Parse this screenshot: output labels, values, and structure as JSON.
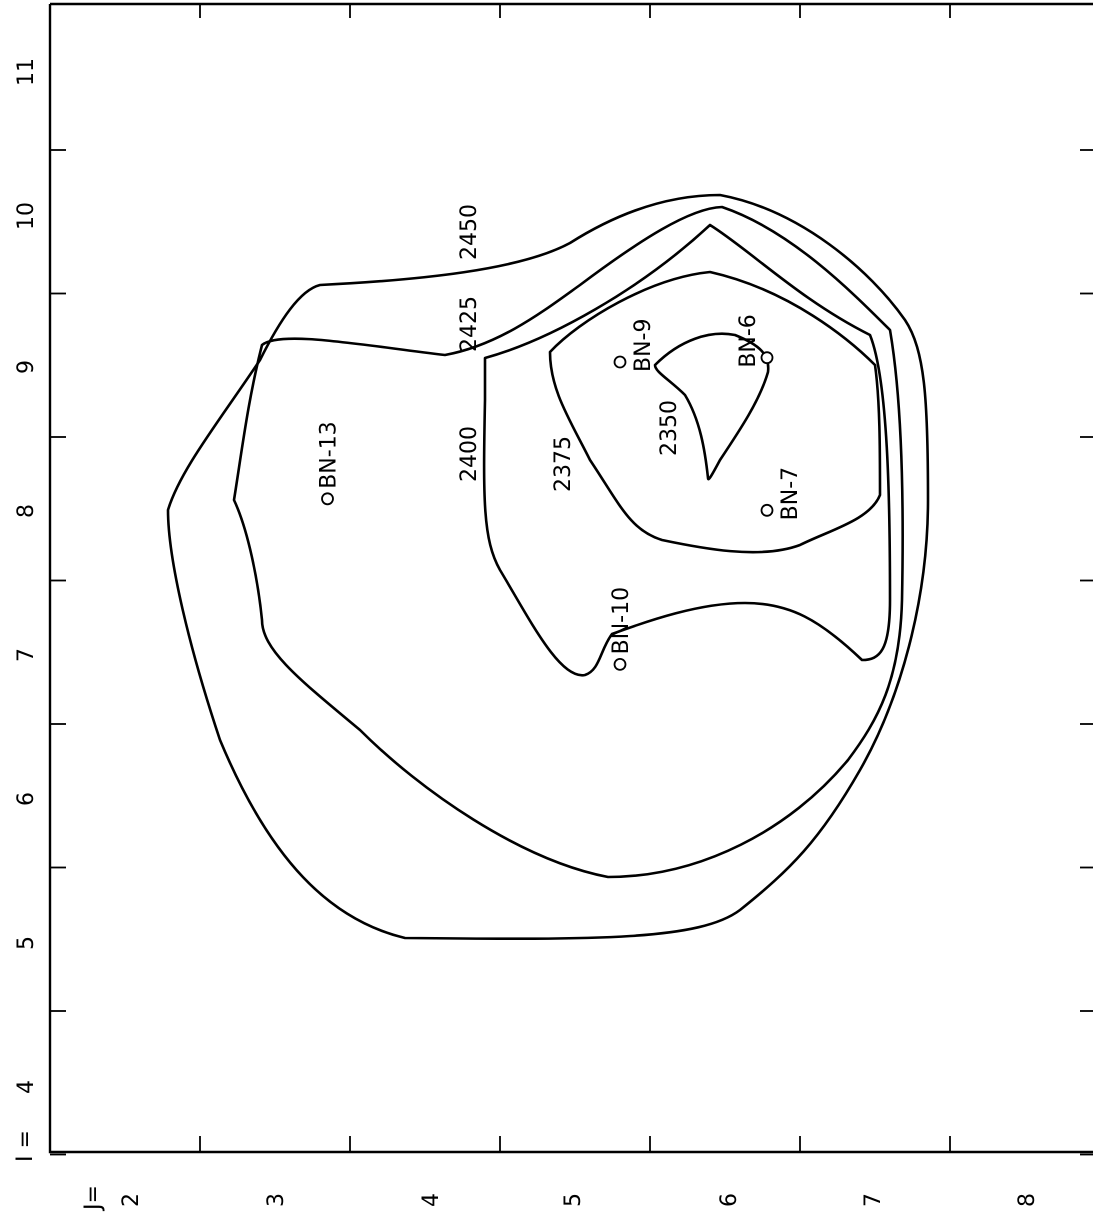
{
  "chart_data": {
    "type": "contour",
    "axes": {
      "I": {
        "label": "I =",
        "ticks": [
          "4",
          "5",
          "6",
          "7",
          "8",
          "9",
          "10",
          "11"
        ]
      },
      "J": {
        "label": "J=",
        "ticks": [
          "2",
          "3",
          "4",
          "5",
          "6",
          "7",
          "8"
        ]
      }
    },
    "grid": false,
    "contours": [
      {
        "level": "2450",
        "label": "2450"
      },
      {
        "level": "2425",
        "label": "2425"
      },
      {
        "level": "2400",
        "label": "2400"
      },
      {
        "level": "2375",
        "label": "2375"
      },
      {
        "level": "2350",
        "label": "2350"
      }
    ],
    "wells": [
      {
        "name": "BN-13",
        "I": 8.05,
        "J": 3.55
      },
      {
        "name": "BN-10",
        "I": 6.9,
        "J": 5.5
      },
      {
        "name": "BN-9",
        "I": 9.0,
        "J": 5.5
      },
      {
        "name": "BN-6",
        "I": 9.03,
        "J": 6.48
      },
      {
        "name": "BN-7",
        "I": 7.97,
        "J": 6.48
      }
    ]
  }
}
